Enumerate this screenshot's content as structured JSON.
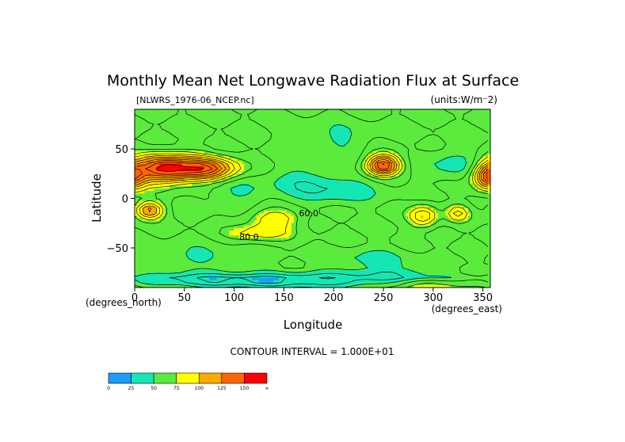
{
  "chart_data": {
    "type": "heatmap",
    "title": "Monthly Mean Net Longwave Radiation Flux at Surface",
    "file_label": "[NLWRS_1976-06_NCEP.nc]",
    "units_label": "(units:W/m^2)",
    "xlabel": "Longitude",
    "ylabel": "Latitude",
    "x_unit_label": "(degrees_east)",
    "y_unit_label": "(degrees_north)",
    "xlim": [
      0,
      357.5
    ],
    "ylim": [
      -90,
      90
    ],
    "x_ticks": [
      0,
      50,
      100,
      150,
      200,
      250,
      300,
      350
    ],
    "y_ticks": [
      50,
      0,
      -50
    ],
    "contour_interval_text": "CONTOUR INTERVAL = 1.000E+01",
    "contour_labels": [
      {
        "text": "60.0",
        "lon": 175,
        "lat": -18
      },
      {
        "text": "80.0",
        "lon": 115,
        "lat": -42
      }
    ],
    "colorbar": {
      "bins": [
        {
          "label": "0",
          "color": "#1e9bff"
        },
        {
          "label": "25",
          "color": "#14e6b4"
        },
        {
          "label": "50",
          "color": "#5aeb3c"
        },
        {
          "label": "75",
          "color": "#ffff00"
        },
        {
          "label": "100",
          "color": "#ffaa00"
        },
        {
          "label": "125",
          "color": "#ff6400"
        },
        {
          "label": "150",
          "color": "#ff0000"
        }
      ],
      "end_label": "∞"
    }
  }
}
